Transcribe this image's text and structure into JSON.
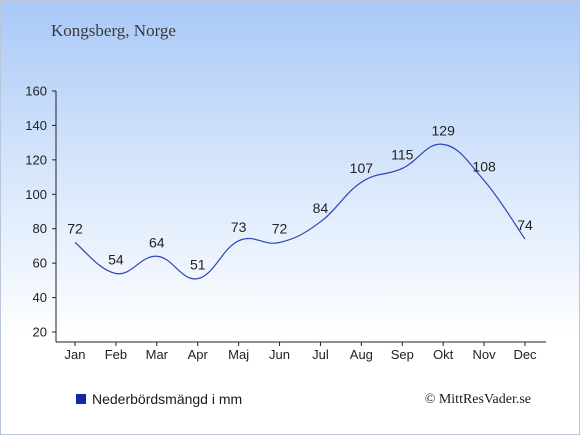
{
  "location": "Kongsberg, Norge",
  "legend_label": "Nederbördsmängd i mm",
  "copyright": "© MittResVader.se",
  "colors": {
    "line": "#2d45b8",
    "swatch": "#0f28a8",
    "axis": "#222222",
    "text": "#222222"
  },
  "chart_data": {
    "type": "line",
    "categories": [
      "Jan",
      "Feb",
      "Mar",
      "Apr",
      "Maj",
      "Jun",
      "Jul",
      "Aug",
      "Sep",
      "Okt",
      "Nov",
      "Dec"
    ],
    "series": [
      {
        "name": "Nederbördsmängd i mm",
        "values": [
          72,
          54,
          64,
          51,
          73,
          72,
          84,
          107,
          115,
          129,
          108,
          74
        ]
      }
    ],
    "ylim": [
      20,
      160
    ],
    "yticks": [
      20,
      40,
      60,
      80,
      100,
      120,
      140,
      160
    ],
    "grid": false,
    "legend_position": "bottom-left"
  }
}
